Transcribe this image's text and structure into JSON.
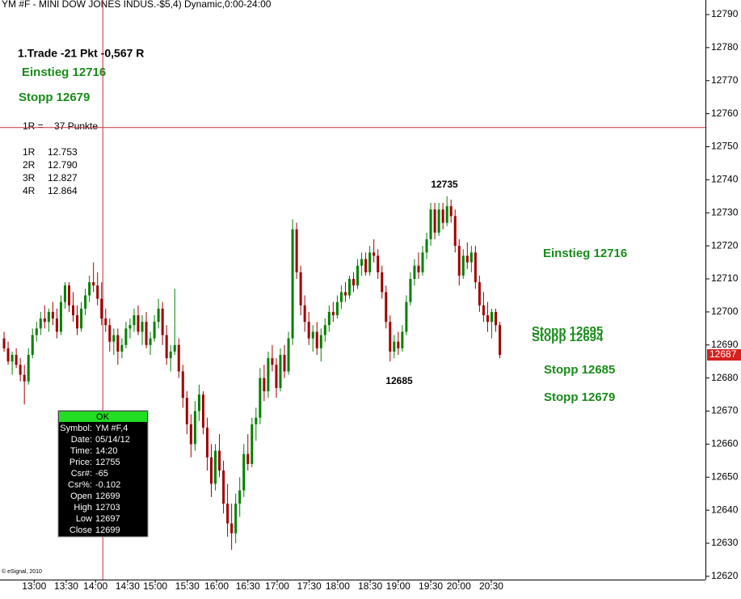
{
  "chart_data": {
    "type": "candlestick",
    "title": "YM #F - MINI DOW JONES INDUS.-$5,4) Dynamic,0:00-24:00",
    "candles": [
      [
        12692,
        12694,
        12688,
        12689
      ],
      [
        12689,
        12691,
        12684,
        12685
      ],
      [
        12685,
        12688,
        12681,
        12687
      ],
      [
        12687,
        12689,
        12683,
        12684
      ],
      [
        12684,
        12686,
        12679,
        12681
      ],
      [
        12681,
        12684,
        12672,
        12679
      ],
      [
        12679,
        12689,
        12678,
        12687
      ],
      [
        12687,
        12695,
        12686,
        12693
      ],
      [
        12693,
        12697,
        12691,
        12695
      ],
      [
        12695,
        12700,
        12693,
        12698
      ],
      [
        12698,
        12702,
        12695,
        12697
      ],
      [
        12697,
        12701,
        12694,
        12700
      ],
      [
        12700,
        12703,
        12696,
        12698
      ],
      [
        12698,
        12701,
        12692,
        12694
      ],
      [
        12694,
        12705,
        12693,
        12703
      ],
      [
        12703,
        12709,
        12701,
        12708
      ],
      [
        12708,
        12709,
        12700,
        12702
      ],
      [
        12702,
        12706,
        12697,
        12699
      ],
      [
        12699,
        12702,
        12693,
        12695
      ],
      [
        12695,
        12703,
        12694,
        12701
      ],
      [
        12701,
        12707,
        12699,
        12705
      ],
      [
        12705,
        12711,
        12703,
        12709
      ],
      [
        12709,
        12715,
        12706,
        12708
      ],
      [
        12708,
        12712,
        12702,
        12704
      ],
      [
        12704,
        12709,
        12696,
        12698
      ],
      [
        12698,
        12701,
        12694,
        12696
      ],
      [
        12696,
        12698,
        12688,
        12691
      ],
      [
        12691,
        12695,
        12687,
        12693
      ],
      [
        12693,
        12695,
        12684,
        12688
      ],
      [
        12688,
        12692,
        12686,
        12690
      ],
      [
        12690,
        12697,
        12689,
        12695
      ],
      [
        12695,
        12698,
        12692,
        12696
      ],
      [
        12696,
        12701,
        12694,
        12699
      ],
      [
        12699,
        12702,
        12693,
        12694
      ],
      [
        12694,
        12699,
        12690,
        12697
      ],
      [
        12697,
        12700,
        12689,
        12690
      ],
      [
        12690,
        12694,
        12687,
        12692
      ],
      [
        12692,
        12699,
        12691,
        12697
      ],
      [
        12697,
        12704,
        12695,
        12701
      ],
      [
        12701,
        12703,
        12690,
        12693
      ],
      [
        12693,
        12696,
        12684,
        12686
      ],
      [
        12686,
        12690,
        12682,
        12688
      ],
      [
        12688,
        12707,
        12687,
        12690
      ],
      [
        12690,
        12692,
        12680,
        12682
      ],
      [
        12682,
        12684,
        12671,
        12674
      ],
      [
        12674,
        12676,
        12663,
        12666
      ],
      [
        12666,
        12669,
        12656,
        12660
      ],
      [
        12660,
        12673,
        12658,
        12670
      ],
      [
        12670,
        12678,
        12667,
        12675
      ],
      [
        12675,
        12676,
        12663,
        12665
      ],
      [
        12665,
        12668,
        12652,
        12656
      ],
      [
        12656,
        12660,
        12644,
        12648
      ],
      [
        12648,
        12660,
        12646,
        12658
      ],
      [
        12658,
        12663,
        12650,
        12652
      ],
      [
        12652,
        12655,
        12639,
        12642
      ],
      [
        12642,
        12648,
        12632,
        12636
      ],
      [
        12636,
        12642,
        12628,
        12633
      ],
      [
        12633,
        12645,
        12630,
        12642
      ],
      [
        12642,
        12650,
        12638,
        12646
      ],
      [
        12646,
        12660,
        12644,
        12657
      ],
      [
        12657,
        12663,
        12652,
        12654
      ],
      [
        12654,
        12668,
        12653,
        12666
      ],
      [
        12666,
        12671,
        12661,
        12668
      ],
      [
        12668,
        12683,
        12666,
        12680
      ],
      [
        12680,
        12684,
        12673,
        12676
      ],
      [
        12676,
        12688,
        12674,
        12686
      ],
      [
        12686,
        12690,
        12682,
        12684
      ],
      [
        12684,
        12686,
        12674,
        12677
      ],
      [
        12677,
        12689,
        12676,
        12687
      ],
      [
        12687,
        12690,
        12680,
        12682
      ],
      [
        12682,
        12694,
        12681,
        12692
      ],
      [
        12692,
        12728,
        12690,
        12725
      ],
      [
        12725,
        12727,
        12710,
        12712
      ],
      [
        12712,
        12714,
        12699,
        12702
      ],
      [
        12702,
        12705,
        12694,
        12697
      ],
      [
        12697,
        12700,
        12690,
        12692
      ],
      [
        12692,
        12696,
        12688,
        12694
      ],
      [
        12694,
        12697,
        12687,
        12689
      ],
      [
        12689,
        12695,
        12685,
        12693
      ],
      [
        12693,
        12698,
        12691,
        12696
      ],
      [
        12696,
        12702,
        12694,
        12700
      ],
      [
        12700,
        12703,
        12697,
        12699
      ],
      [
        12699,
        12705,
        12698,
        12703
      ],
      [
        12703,
        12708,
        12701,
        12706
      ],
      [
        12706,
        12709,
        12703,
        12705
      ],
      [
        12705,
        12711,
        12704,
        12710
      ],
      [
        12710,
        12712,
        12706,
        12708
      ],
      [
        12708,
        12716,
        12707,
        12714
      ],
      [
        12714,
        12718,
        12711,
        12716
      ],
      [
        12716,
        12718,
        12711,
        12712
      ],
      [
        12712,
        12720,
        12711,
        12718
      ],
      [
        12718,
        12722,
        12715,
        12717
      ],
      [
        12717,
        12719,
        12710,
        12712
      ],
      [
        12712,
        12714,
        12704,
        12706
      ],
      [
        12706,
        12708,
        12695,
        12697
      ],
      [
        12697,
        12699,
        12685,
        12688
      ],
      [
        12688,
        12693,
        12686,
        12691
      ],
      [
        12691,
        12694,
        12687,
        12689
      ],
      [
        12689,
        12696,
        12688,
        12694
      ],
      [
        12694,
        12705,
        12693,
        12703
      ],
      [
        12703,
        12712,
        12702,
        12710
      ],
      [
        12710,
        12716,
        12708,
        12714
      ],
      [
        12714,
        12718,
        12710,
        12712
      ],
      [
        12712,
        12720,
        12711,
        12718
      ],
      [
        12718,
        12724,
        12716,
        12722
      ],
      [
        12722,
        12733,
        12720,
        12731
      ],
      [
        12731,
        12733,
        12722,
        12724
      ],
      [
        12724,
        12733,
        12723,
        12731
      ],
      [
        12731,
        12733,
        12725,
        12727
      ],
      [
        12727,
        12735,
        12726,
        12732
      ],
      [
        12732,
        12734,
        12727,
        12729
      ],
      [
        12729,
        12731,
        12718,
        12720
      ],
      [
        12720,
        12722,
        12708,
        12711
      ],
      [
        12711,
        12719,
        12710,
        12717
      ],
      [
        12717,
        12721,
        12713,
        12715
      ],
      [
        12715,
        12720,
        12712,
        12718
      ],
      [
        12718,
        12720,
        12707,
        12709
      ],
      [
        12709,
        12711,
        12700,
        12702
      ],
      [
        12702,
        12706,
        12697,
        12699
      ],
      [
        12699,
        12703,
        12694,
        12697
      ],
      [
        12697,
        12701,
        12692,
        12700
      ],
      [
        12700,
        12701,
        12694,
        12696
      ],
      [
        12696,
        12697,
        12686,
        12687
      ]
    ],
    "up_color": "#008000",
    "down_color": "#a00000",
    "ylim": [
      12619,
      12794.4
    ],
    "yticks": [
      12620,
      12630,
      12640,
      12650,
      12660,
      12670,
      12680,
      12690,
      12700,
      12710,
      12720,
      12730,
      12740,
      12750,
      12760,
      12770,
      12780,
      12790
    ],
    "xlim": [
      -1,
      172.6
    ],
    "xticks": [
      {
        "value": 7.4,
        "label": "13:00"
      },
      {
        "value": 15.3,
        "label": "13:30"
      },
      {
        "value": 22.5,
        "label": "14:00"
      },
      {
        "value": 30.4,
        "label": "14:30"
      },
      {
        "value": 37.2,
        "label": "15:00"
      },
      {
        "value": 45.1,
        "label": "15:30"
      },
      {
        "value": 52.3,
        "label": "16:00"
      },
      {
        "value": 60,
        "label": "16:30"
      },
      {
        "value": 67.2,
        "label": "17:00"
      },
      {
        "value": 75.1,
        "label": "17:30"
      },
      {
        "value": 82.1,
        "label": "18:00"
      },
      {
        "value": 90.1,
        "label": "18:30"
      },
      {
        "value": 97,
        "label": "19:00"
      },
      {
        "value": 105,
        "label": "19:30"
      },
      {
        "value": 111.9,
        "label": "20:00"
      },
      {
        "value": 119.9,
        "label": "20:30"
      }
    ],
    "crosshair": {
      "x": 24.3,
      "y": 12755.8,
      "color": "#c0303a"
    },
    "last_price": {
      "value": 12687,
      "color": "#d42020"
    },
    "annotations": [
      "12735",
      "12685",
      "Einstieg 12716",
      "Stopp 12695",
      "Stopp 12694",
      "Stopp 12685",
      "Stopp 12679"
    ],
    "footer": "© eSignal, 2010"
  },
  "trade_panel": {
    "trade": "1.Trade -21 Pkt -0,567 R",
    "entry": "Einstieg 12716",
    "stop": "Stopp 12679",
    "r_def": "1R =    37 Punkte",
    "levels": [
      [
        "1R",
        "12.753"
      ],
      [
        "2R",
        "12.790"
      ],
      [
        "3R",
        "12.827"
      ],
      [
        "4R",
        "12.864"
      ]
    ]
  },
  "data_window": {
    "header": "OK",
    "rows": [
      [
        "Symbol:",
        "YM #F,4"
      ],
      [
        "Date:",
        "05/14/12"
      ],
      [
        "Time:",
        "14:20"
      ],
      [
        "Price:",
        "12755"
      ],
      [
        "Csr#:",
        "-65"
      ],
      [
        "Csr%:",
        "-0.102"
      ],
      [
        "Open",
        "12699"
      ],
      [
        "High",
        "12703"
      ],
      [
        "Low",
        "12697"
      ],
      [
        "Close",
        "12699"
      ]
    ]
  }
}
